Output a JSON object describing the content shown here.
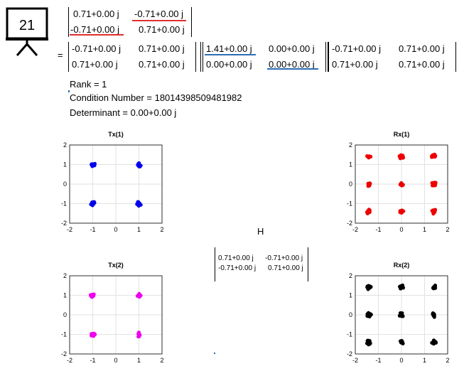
{
  "slide": {
    "number": "21"
  },
  "channel_matrix": {
    "rows": [
      [
        "0.71+0.00 j",
        "-0.71+0.00 j"
      ],
      [
        "-0.71+0.00 j",
        "0.71+0.00 j"
      ]
    ]
  },
  "equals": "=",
  "svd": {
    "U": {
      "rows": [
        [
          "-0.71+0.00 j",
          "0.71+0.00 j"
        ],
        [
          "0.71+0.00 j",
          "0.71+0.00 j"
        ]
      ]
    },
    "S": {
      "rows": [
        [
          "1.41+0.00 j",
          "0.00+0.00 j"
        ],
        [
          "0.00+0.00 j",
          "0.00+0.00 j"
        ]
      ]
    },
    "V": {
      "rows": [
        [
          "-0.71+0.00 j",
          "0.71+0.00 j"
        ],
        [
          "0.71+0.00 j",
          "0.71+0.00 j"
        ]
      ]
    }
  },
  "stats": {
    "rank": "Rank = 1",
    "condition_number": "Condition Number = 18014398509481982",
    "determinant": "Determinant = 0.00+0.00 j"
  },
  "h_panel": {
    "label": "H",
    "rows": [
      [
        "0.71+0.00 j",
        "-0.71+0.00 j"
      ],
      [
        "-0.71+0.00 j",
        "0.71+0.00 j"
      ]
    ]
  },
  "colors": {
    "tx1": "#0000ee",
    "rx1": "#ee0000",
    "tx2": "#ee00ee",
    "rx2": "#000000",
    "red_underline": "#e03030",
    "blue_underline": "#2a6db5"
  },
  "chart_data": [
    {
      "type": "scatter",
      "title": "Tx(1)",
      "xlim": [
        -2,
        2
      ],
      "ylim": [
        -2,
        2
      ],
      "xticks": [
        "-2",
        "-1",
        "0",
        "1",
        "2"
      ],
      "yticks": [
        "2",
        "1",
        "0",
        "-1",
        "-2"
      ],
      "grid": true,
      "color": "#0000ee",
      "points": [
        [
          -1,
          1
        ],
        [
          1,
          1
        ],
        [
          -1,
          -1
        ],
        [
          1,
          -1
        ]
      ]
    },
    {
      "type": "scatter",
      "title": "Rx(1)",
      "xlim": [
        -2,
        2
      ],
      "ylim": [
        -2,
        2
      ],
      "xticks": [
        "-2",
        "-1",
        "0",
        "1",
        "2"
      ],
      "yticks": [
        "2",
        "1",
        "0",
        "-1",
        "-2"
      ],
      "grid": true,
      "color": "#ee0000",
      "points": [
        [
          -1.41,
          1.41
        ],
        [
          0,
          1.41
        ],
        [
          1.41,
          1.41
        ],
        [
          -1.41,
          0
        ],
        [
          0,
          0
        ],
        [
          1.41,
          0
        ],
        [
          -1.41,
          -1.41
        ],
        [
          0,
          -1.41
        ],
        [
          1.41,
          -1.41
        ]
      ]
    },
    {
      "type": "scatter",
      "title": "Tx(2)",
      "xlim": [
        -2,
        2
      ],
      "ylim": [
        -2,
        2
      ],
      "xticks": [
        "-2",
        "-1",
        "0",
        "1",
        "2"
      ],
      "yticks": [
        "2",
        "1",
        "0",
        "-1",
        "-2"
      ],
      "grid": true,
      "color": "#ee00ee",
      "points": [
        [
          -1,
          1
        ],
        [
          1,
          1
        ],
        [
          -1,
          -1
        ],
        [
          1,
          -1
        ]
      ]
    },
    {
      "type": "scatter",
      "title": "Rx(2)",
      "xlim": [
        -2,
        2
      ],
      "ylim": [
        -2,
        2
      ],
      "xticks": [
        "-2",
        "-1",
        "0",
        "1",
        "2"
      ],
      "yticks": [
        "2",
        "1",
        "0",
        "-1",
        "-2"
      ],
      "grid": true,
      "color": "#000000",
      "points": [
        [
          -1.41,
          1.41
        ],
        [
          0,
          1.41
        ],
        [
          1.41,
          1.41
        ],
        [
          -1.41,
          0
        ],
        [
          0,
          0
        ],
        [
          1.41,
          0
        ],
        [
          -1.41,
          -1.41
        ],
        [
          0,
          -1.41
        ],
        [
          1.41,
          -1.41
        ]
      ]
    }
  ]
}
